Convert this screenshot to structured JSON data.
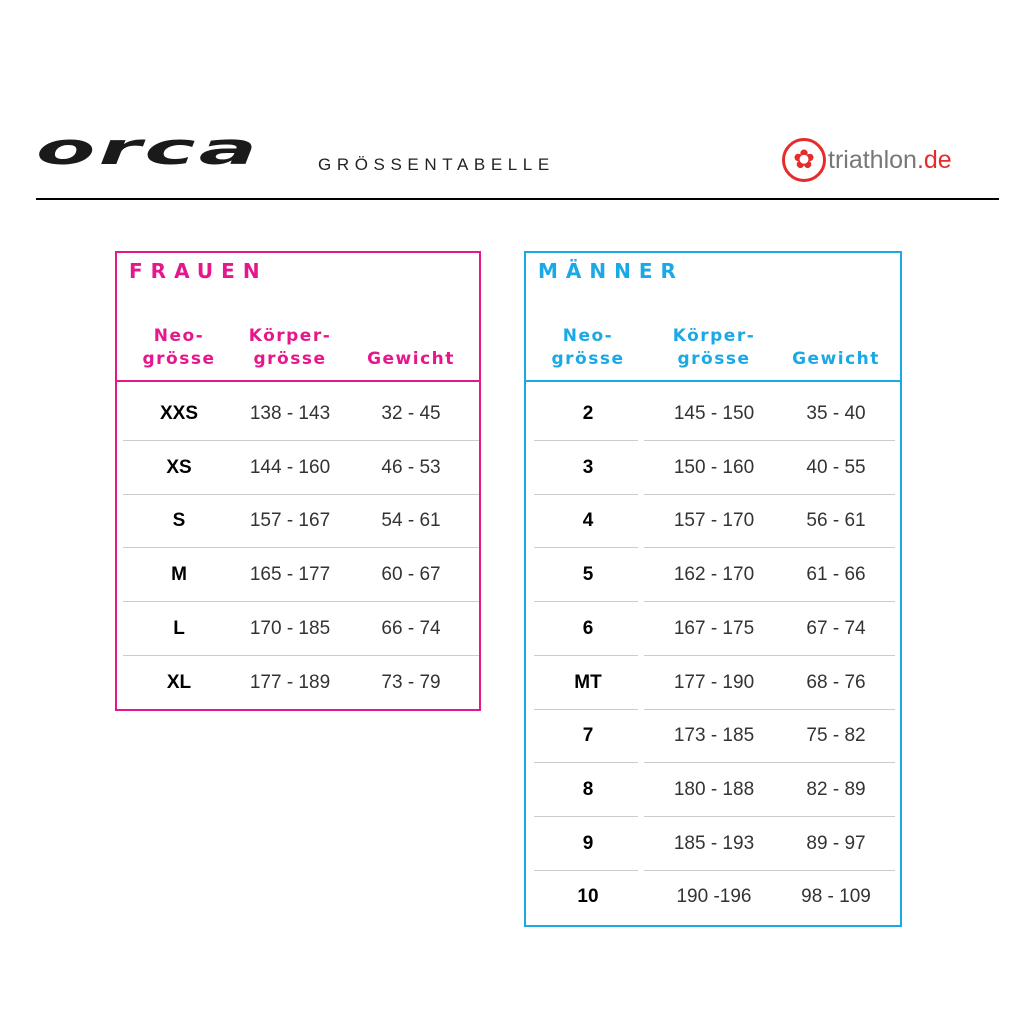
{
  "header": {
    "logo": "orca",
    "title": "GRÖSSENTABELLE",
    "partner_logo": "triathlon.de",
    "partner_name": "triathlon",
    "partner_tld": ".de"
  },
  "colors": {
    "women": "#e6178c",
    "men": "#1aa9e6",
    "partner": "#e52b2b"
  },
  "women": {
    "title": "FRAUEN",
    "columns": [
      "Neo-\ngrösse",
      "Körper-\ngrösse",
      "Gewicht"
    ],
    "rows": [
      [
        "XXS",
        "138 - 143",
        "32 - 45"
      ],
      [
        "XS",
        "144 - 160",
        "46 - 53"
      ],
      [
        "S",
        "157 - 167",
        "54 - 61"
      ],
      [
        "M",
        "165 - 177",
        "60 - 67"
      ],
      [
        "L",
        "170 - 185",
        "66 - 74"
      ],
      [
        "XL",
        "177 - 189",
        "73 - 79"
      ]
    ]
  },
  "men": {
    "title": "MÄNNER",
    "columns": [
      "Neo-\ngrösse",
      "Körper-\ngrösse",
      "Gewicht"
    ],
    "rows": [
      [
        "2",
        "145 - 150",
        "35 - 40"
      ],
      [
        "3",
        "150 - 160",
        "40 - 55"
      ],
      [
        "4",
        "157 - 170",
        "56 - 61"
      ],
      [
        "5",
        "162 - 170",
        "61 - 66"
      ],
      [
        "6",
        "167 - 175",
        "67 - 74"
      ],
      [
        "MT",
        "177 - 190",
        "68 - 76"
      ],
      [
        "7",
        "173 - 185",
        "75 - 82"
      ],
      [
        "8",
        "180 - 188",
        "82 - 89"
      ],
      [
        "9",
        "185 - 193",
        "89 - 97"
      ],
      [
        "10",
        "190 -196",
        "98 - 109"
      ]
    ]
  }
}
